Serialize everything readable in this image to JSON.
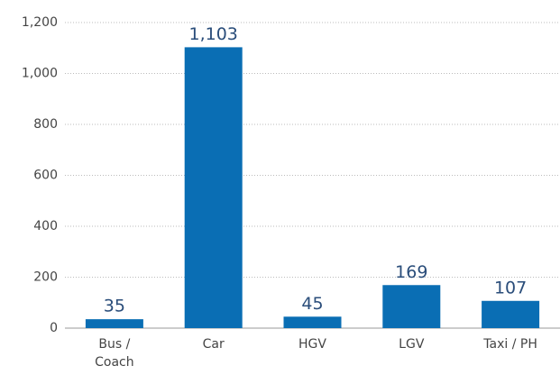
{
  "chart_data": {
    "type": "bar",
    "categories": [
      "Bus / Coach",
      "Car",
      "HGV",
      "LGV",
      "Taxi / PH"
    ],
    "values": [
      35,
      1103,
      45,
      169,
      107
    ],
    "value_labels": [
      "35",
      "1,103",
      "45",
      "169",
      "107"
    ],
    "color": "#0a6eb4",
    "ylim": [
      0,
      1200
    ],
    "yticks": [
      0,
      200,
      400,
      600,
      800,
      {
        "value": 1000,
        "label": "1,000"
      },
      {
        "value": 1200,
        "label": "1,200"
      }
    ],
    "grid": true
  }
}
